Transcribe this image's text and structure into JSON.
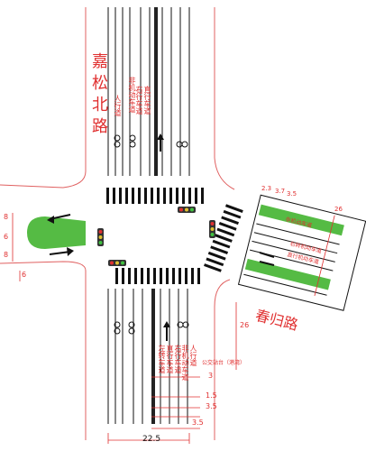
{
  "roads": {
    "north_name": "嘉松北路",
    "east_name": "春归路"
  },
  "north_lane_labels": [
    "人行道",
    "非机动车道",
    "右行车道",
    "直行车道",
    "左转车道"
  ],
  "south_lane_labels": [
    "左转车道",
    "直行车道",
    "右行车道",
    "非机动车道",
    "人行道"
  ],
  "east_lane_labels": {
    "nonmotor": "非机动车道",
    "right": "右转机动车道",
    "straight": "直行机动车道"
  },
  "bus_stop_label": "公交站台（港湾）",
  "dimensions": {
    "south": [
      "3",
      "1.5",
      "3.5",
      "3.5",
      "22.5"
    ],
    "east_top": [
      "2.3",
      "3.7",
      "3.5"
    ],
    "east_total": "26",
    "east_side": "26",
    "west_left": [
      "8",
      "6",
      "8"
    ],
    "west_small": "6"
  },
  "colors": {
    "line": "#111111",
    "dim": "#e03030",
    "median": "#55bb44",
    "road_edge": "#e06060"
  }
}
